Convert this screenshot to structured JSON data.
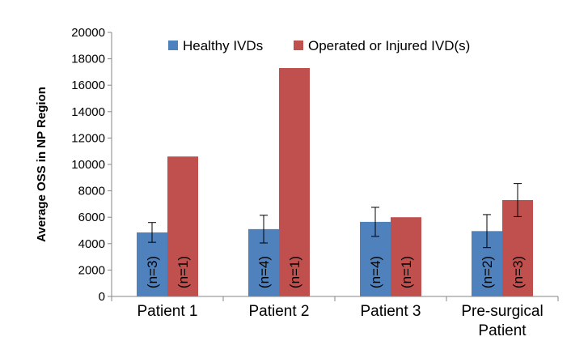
{
  "chart_data": {
    "type": "bar",
    "title": "",
    "xlabel": "",
    "ylabel": "Average OSS in NP Region",
    "ylim": [
      0,
      20000
    ],
    "yticks": [
      0,
      2000,
      4000,
      6000,
      8000,
      10000,
      12000,
      14000,
      16000,
      18000,
      20000
    ],
    "grid": false,
    "legend_position": "top",
    "categories": [
      [
        "Patient 1"
      ],
      [
        "Patient 2"
      ],
      [
        "Patient 3"
      ],
      [
        "Pre-surgical",
        "Patient"
      ]
    ],
    "series": [
      {
        "name": "Healthy IVDs",
        "color": "#4F81BD",
        "values": [
          4850,
          5100,
          5650,
          4950
        ],
        "errors": [
          750,
          1050,
          1100,
          1250
        ],
        "annotations": [
          "(n=3)",
          "(n=4)",
          "(n=4)",
          "(n=2)"
        ]
      },
      {
        "name": "Operated or Injured IVD(s)",
        "color": "#C0504D",
        "values": [
          10600,
          17300,
          6000,
          7300
        ],
        "errors": [
          null,
          null,
          null,
          1250
        ],
        "annotations": [
          "(n=1)",
          "(n=1)",
          "(n=1)",
          "(n=3)"
        ]
      }
    ]
  }
}
